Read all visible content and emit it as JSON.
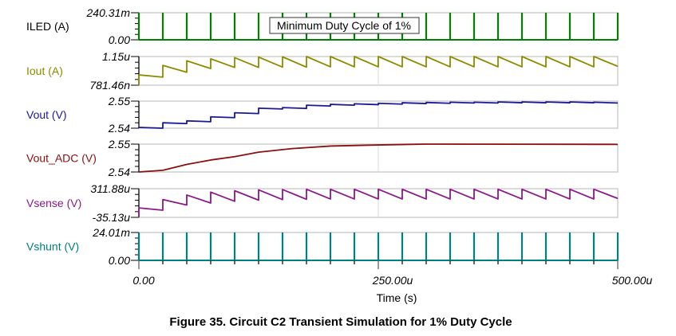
{
  "chart_data": {
    "type": "line",
    "caption": "Figure 35. Circuit C2 Transient Simulation for 1% Duty Cycle",
    "xlabel": "Time (s)",
    "xlim": [
      0,
      0.0005
    ],
    "xtick_labels": [
      "0.00",
      "250.00u",
      "500.00u"
    ],
    "grid": "vertical line at 250.00u",
    "annotation": "Minimum Duty Cycle of 1%",
    "pulse_times": [
      0,
      2.5e-05,
      5e-05,
      7.5e-05,
      0.0001,
      0.000125,
      0.00015,
      0.000175,
      0.0002,
      0.000225,
      0.00025,
      0.000275,
      0.0003,
      0.000325,
      0.00035,
      0.000375,
      0.0004,
      0.000425,
      0.00045,
      0.000475,
      0.0005
    ],
    "series": [
      {
        "name": "ILED (A)",
        "color": "#008000",
        "name_color": "#000000",
        "kind": "pulse",
        "ylim": [
          0,
          0.24031
        ],
        "ytick_labels": [
          "0.00",
          "240.31m"
        ],
        "low": 0,
        "high": 0.24031
      },
      {
        "name": "Iout (A)",
        "color": "#8c8c00",
        "kind": "sawtooth",
        "ylim": [
          7.8146e-07,
          1.15e-06
        ],
        "ytick_labels": [
          "781.46n",
          "1.15u"
        ],
        "initial": 7.8146e-07,
        "peaks": [
          9.141e-07,
          1.0358e-06,
          1.0947e-06,
          1.1205e-06,
          1.1353e-06,
          1.1426e-06,
          1.1463e-06,
          1.15e-06,
          1.15e-06,
          1.15e-06,
          1.15e-06,
          1.15e-06,
          1.15e-06,
          1.15e-06,
          1.15e-06,
          1.15e-06,
          1.15e-06,
          1.15e-06,
          1.15e-06,
          1.15e-06
        ],
        "troughs": [
          8.847e-07,
          9.473e-07,
          9.952e-07,
          1.01e-06,
          1.01e-06,
          1.0136e-06,
          1.0136e-06,
          1.0173e-06,
          1.0173e-06,
          1.0173e-06,
          1.0173e-06,
          1.0173e-06,
          1.0173e-06,
          1.0173e-06,
          1.0173e-06,
          1.0173e-06,
          1.0173e-06,
          1.0173e-06,
          1.0173e-06,
          1.0247e-06
        ]
      },
      {
        "name": "Vout (V)",
        "color": "#1a1a96",
        "kind": "steps",
        "ylim": [
          2.54,
          2.55
        ],
        "ytick_labels": [
          "2.54",
          "2.55"
        ],
        "levels": [
          2.5403,
          2.542,
          2.5427,
          2.5442,
          2.5457,
          2.5474,
          2.5476,
          2.5485,
          2.5488,
          2.549,
          2.5492,
          2.5494,
          2.5495,
          2.5496,
          2.5496,
          2.5497,
          2.5497,
          2.5497,
          2.5497,
          2.5496
        ]
      },
      {
        "name": "Vout_ADC (V)",
        "color": "#8b1010",
        "kind": "line",
        "ylim": [
          2.54,
          2.55
        ],
        "ytick_labels": [
          "2.54",
          "2.55"
        ],
        "points": [
          [
            0,
            2.54
          ],
          [
            2.5e-05,
            2.5406
          ],
          [
            5e-05,
            2.5427
          ],
          [
            7.5e-05,
            2.5443
          ],
          [
            0.0001,
            2.5455
          ],
          [
            0.000125,
            2.5471
          ],
          [
            0.00016,
            2.5484
          ],
          [
            0.0002,
            2.5493
          ],
          [
            0.00025,
            2.5497
          ],
          [
            0.0003,
            2.55
          ],
          [
            0.0005,
            2.5499
          ]
        ]
      },
      {
        "name": "Vsense (V)",
        "color": "#8b1a8b",
        "kind": "sawtooth",
        "ylim": [
          -3.513e-05,
          0.00031188
        ],
        "ytick_labels": [
          "-35.13u",
          "311.88u"
        ],
        "initial": -3.513e-05,
        "peaks": [
          7.94e-05,
          0.00018,
          0.0002355,
          0.0002702,
          0.0002876,
          0.000298,
          0.0003015,
          0.000305,
          0.000305,
          0.000305,
          0.000305,
          0.000305,
          0.000305,
          0.000305,
          0.000305,
          0.000305,
          0.000305,
          0.000305,
          0.000305,
          0.000305
        ],
        "troughs": [
          5.16e-05,
          0.0001141,
          0.0001384,
          0.0001592,
          0.0001731,
          0.00018,
          0.0001835,
          0.000187,
          0.000187,
          0.000187,
          0.000187,
          0.000187,
          0.000187,
          0.000187,
          0.000187,
          0.000187,
          0.000187,
          0.000187,
          0.000187,
          0.0001939
        ]
      },
      {
        "name": "Vshunt (V)",
        "color": "#008080",
        "kind": "pulse",
        "ylim": [
          0,
          0.02401
        ],
        "ytick_labels": [
          "0.00",
          "24.01m"
        ],
        "low": 0,
        "high": 0.02401
      }
    ]
  }
}
